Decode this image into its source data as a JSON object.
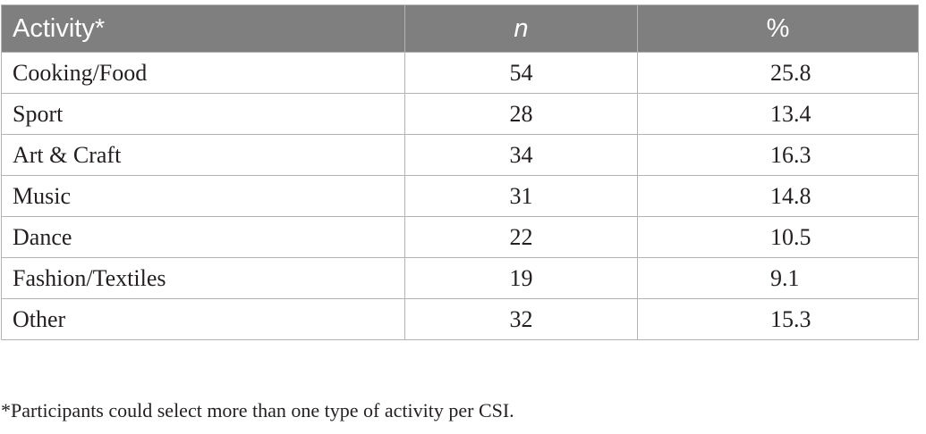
{
  "table": {
    "headers": [
      "Activity*",
      "n",
      "%"
    ],
    "rows": [
      {
        "activity": "Cooking/Food",
        "n": "54",
        "pct": "25.8"
      },
      {
        "activity": "Sport",
        "n": "28",
        "pct": "13.4"
      },
      {
        "activity": "Art & Craft",
        "n": "34",
        "pct": "16.3"
      },
      {
        "activity": "Music",
        "n": "31",
        "pct": "14.8"
      },
      {
        "activity": "Dance",
        "n": "22",
        "pct": "10.5"
      },
      {
        "activity": "Fashion/Textiles",
        "n": "19",
        "pct": "9.1"
      },
      {
        "activity": "Other",
        "n": "32",
        "pct": "15.3"
      }
    ]
  },
  "footnote": "*Participants could select more than one type of activity per CSI.",
  "colors": {
    "header_background": "#7f7f7f",
    "header_text": "#ffffff",
    "border": "#b3b3b3",
    "body_text": "#231f20"
  }
}
